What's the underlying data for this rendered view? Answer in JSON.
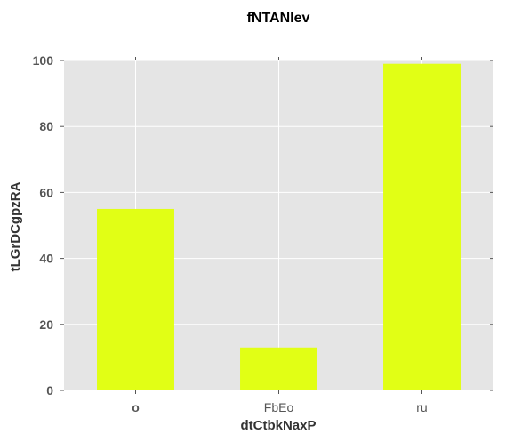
{
  "chart_data": {
    "type": "bar",
    "title": "fNTANlev",
    "xlabel": "dtCtbkNaxP",
    "ylabel": "tLGrDCgpzRA",
    "categories": [
      "o",
      "FbEo",
      "ru"
    ],
    "values": [
      55,
      13,
      99
    ],
    "ylim": [
      0,
      100
    ],
    "yticks": [
      0,
      20,
      40,
      60,
      80,
      100
    ],
    "grid": true,
    "colors": {
      "bar": "#e1ff15",
      "plot_background": "#e5e5e5",
      "grid": "#ffffff"
    }
  }
}
